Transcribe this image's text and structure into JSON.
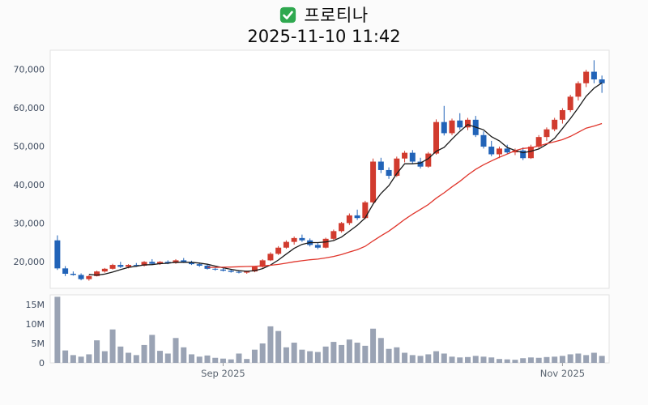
{
  "header": {
    "title": "프로티나",
    "subtitle": "2025-11-10 11:42"
  },
  "icons": {
    "title_checkbox": "green-checkbox-icon"
  },
  "chart_data": {
    "type": "candlestick",
    "title": "프로티나",
    "timestamp": "2025-11-10 11:42",
    "legend_position": "none",
    "grid": false,
    "price_axis": {
      "ticks": [
        20000,
        30000,
        40000,
        50000,
        60000,
        70000
      ],
      "range": [
        13000,
        75000
      ]
    },
    "volume_axis": {
      "ticks_m": [
        0,
        5,
        10,
        15
      ],
      "range_m": [
        0,
        17.5
      ]
    },
    "x_ticks": [
      {
        "label": "Sep 2025",
        "index": 21
      },
      {
        "label": "Nov 2025",
        "index": 64
      }
    ],
    "colors": {
      "up": "#d13b2e",
      "down": "#2163b8",
      "volume": "#9aa3b4",
      "pane_border": "#e2e2e2",
      "pane_bg": "#ffffff",
      "checkbox_green": "#2fa84f"
    },
    "moving_averages": [
      {
        "name": "MA5",
        "window": 5,
        "color": "#1a1a1a"
      },
      {
        "name": "MA20",
        "window": 20,
        "color": "#e0352b"
      }
    ],
    "candle_columns": [
      "open",
      "high",
      "low",
      "close",
      "volume_millions"
    ],
    "candles": [
      [
        25500,
        26800,
        17800,
        18200,
        17.0
      ],
      [
        18200,
        18800,
        16200,
        16800,
        3.2
      ],
      [
        16800,
        17400,
        16300,
        16500,
        2.0
      ],
      [
        16500,
        16900,
        15100,
        15400,
        1.6
      ],
      [
        15400,
        16400,
        15000,
        16200,
        2.2
      ],
      [
        16200,
        17600,
        16100,
        17400,
        5.8
      ],
      [
        17400,
        18300,
        17100,
        18100,
        3.0
      ],
      [
        18100,
        19400,
        17900,
        19100,
        8.6
      ],
      [
        19100,
        19900,
        18300,
        18600,
        4.2
      ],
      [
        18600,
        19300,
        18200,
        19100,
        2.6
      ],
      [
        19100,
        19600,
        18600,
        18900,
        2.0
      ],
      [
        18900,
        20100,
        18700,
        19900,
        4.6
      ],
      [
        19900,
        20600,
        19100,
        19400,
        7.2
      ],
      [
        19400,
        20100,
        19100,
        19900,
        3.1
      ],
      [
        19900,
        20300,
        19300,
        19600,
        2.4
      ],
      [
        19600,
        20600,
        19400,
        20300,
        6.4
      ],
      [
        20300,
        20900,
        19600,
        19800,
        4.0
      ],
      [
        19800,
        20200,
        19100,
        19300,
        2.2
      ],
      [
        19300,
        19700,
        18600,
        18900,
        1.6
      ],
      [
        18900,
        19300,
        17900,
        18100,
        1.9
      ],
      [
        18100,
        18600,
        17600,
        17900,
        1.3
      ],
      [
        17900,
        18300,
        17400,
        17600,
        1.1
      ],
      [
        17600,
        18000,
        17100,
        17300,
        0.9
      ],
      [
        17300,
        17700,
        16900,
        17100,
        2.4
      ],
      [
        17100,
        17600,
        16800,
        17400,
        1.0
      ],
      [
        17400,
        18800,
        17200,
        18600,
        3.4
      ],
      [
        18600,
        20600,
        18400,
        20300,
        5.0
      ],
      [
        20300,
        22400,
        20100,
        22000,
        9.4
      ],
      [
        22000,
        24000,
        21700,
        23600,
        8.2
      ],
      [
        23600,
        25500,
        23300,
        25100,
        4.0
      ],
      [
        25100,
        26500,
        24400,
        26100,
        5.2
      ],
      [
        26100,
        27000,
        25100,
        25500,
        3.4
      ],
      [
        25500,
        26000,
        23900,
        24300,
        3.0
      ],
      [
        24300,
        24800,
        23200,
        23600,
        2.8
      ],
      [
        23600,
        26200,
        23400,
        25900,
        4.2
      ],
      [
        25900,
        28300,
        25600,
        27900,
        5.4
      ],
      [
        27900,
        30300,
        27500,
        30000,
        4.6
      ],
      [
        30000,
        32500,
        29500,
        32000,
        6.0
      ],
      [
        32000,
        33500,
        30800,
        31300,
        5.2
      ],
      [
        31300,
        35800,
        31000,
        35400,
        4.4
      ],
      [
        35400,
        46800,
        35200,
        46000,
        8.8
      ],
      [
        46000,
        47000,
        43000,
        43800,
        6.4
      ],
      [
        43800,
        44500,
        41500,
        42300,
        3.6
      ],
      [
        42300,
        47300,
        42000,
        46800,
        4.0
      ],
      [
        46800,
        48800,
        45800,
        48300,
        2.6
      ],
      [
        48300,
        49000,
        45500,
        46000,
        2.0
      ],
      [
        46000,
        47000,
        44200,
        44700,
        1.8
      ],
      [
        44700,
        48500,
        44400,
        48100,
        2.2
      ],
      [
        48100,
        57000,
        47800,
        56300,
        3.0
      ],
      [
        56300,
        60500,
        52800,
        53400,
        2.4
      ],
      [
        53400,
        57200,
        52900,
        56700,
        1.6
      ],
      [
        56700,
        58600,
        54300,
        54900,
        1.4
      ],
      [
        54900,
        57400,
        54200,
        56900,
        1.5
      ],
      [
        56900,
        57900,
        52400,
        52900,
        1.8
      ],
      [
        52900,
        53900,
        49400,
        49900,
        1.6
      ],
      [
        49900,
        51400,
        47400,
        47900,
        1.4
      ],
      [
        47900,
        49900,
        46900,
        49400,
        1.0
      ],
      [
        49400,
        50400,
        47900,
        48400,
        0.9
      ],
      [
        48400,
        49400,
        47700,
        48900,
        0.8
      ],
      [
        48900,
        49700,
        46400,
        46900,
        1.2
      ],
      [
        46900,
        50400,
        46700,
        49900,
        1.4
      ],
      [
        49900,
        52900,
        49400,
        52400,
        1.3
      ],
      [
        52400,
        54900,
        51400,
        54400,
        1.5
      ],
      [
        54400,
        57400,
        53900,
        56900,
        1.6
      ],
      [
        56900,
        59900,
        55900,
        59400,
        1.8
      ],
      [
        59400,
        63400,
        58900,
        62900,
        2.2
      ],
      [
        62900,
        66900,
        61900,
        66400,
        2.4
      ],
      [
        66400,
        69900,
        65400,
        69400,
        2.0
      ],
      [
        69400,
        72400,
        66400,
        67400,
        2.6
      ],
      [
        67400,
        68400,
        63900,
        66400,
        1.8
      ]
    ]
  }
}
